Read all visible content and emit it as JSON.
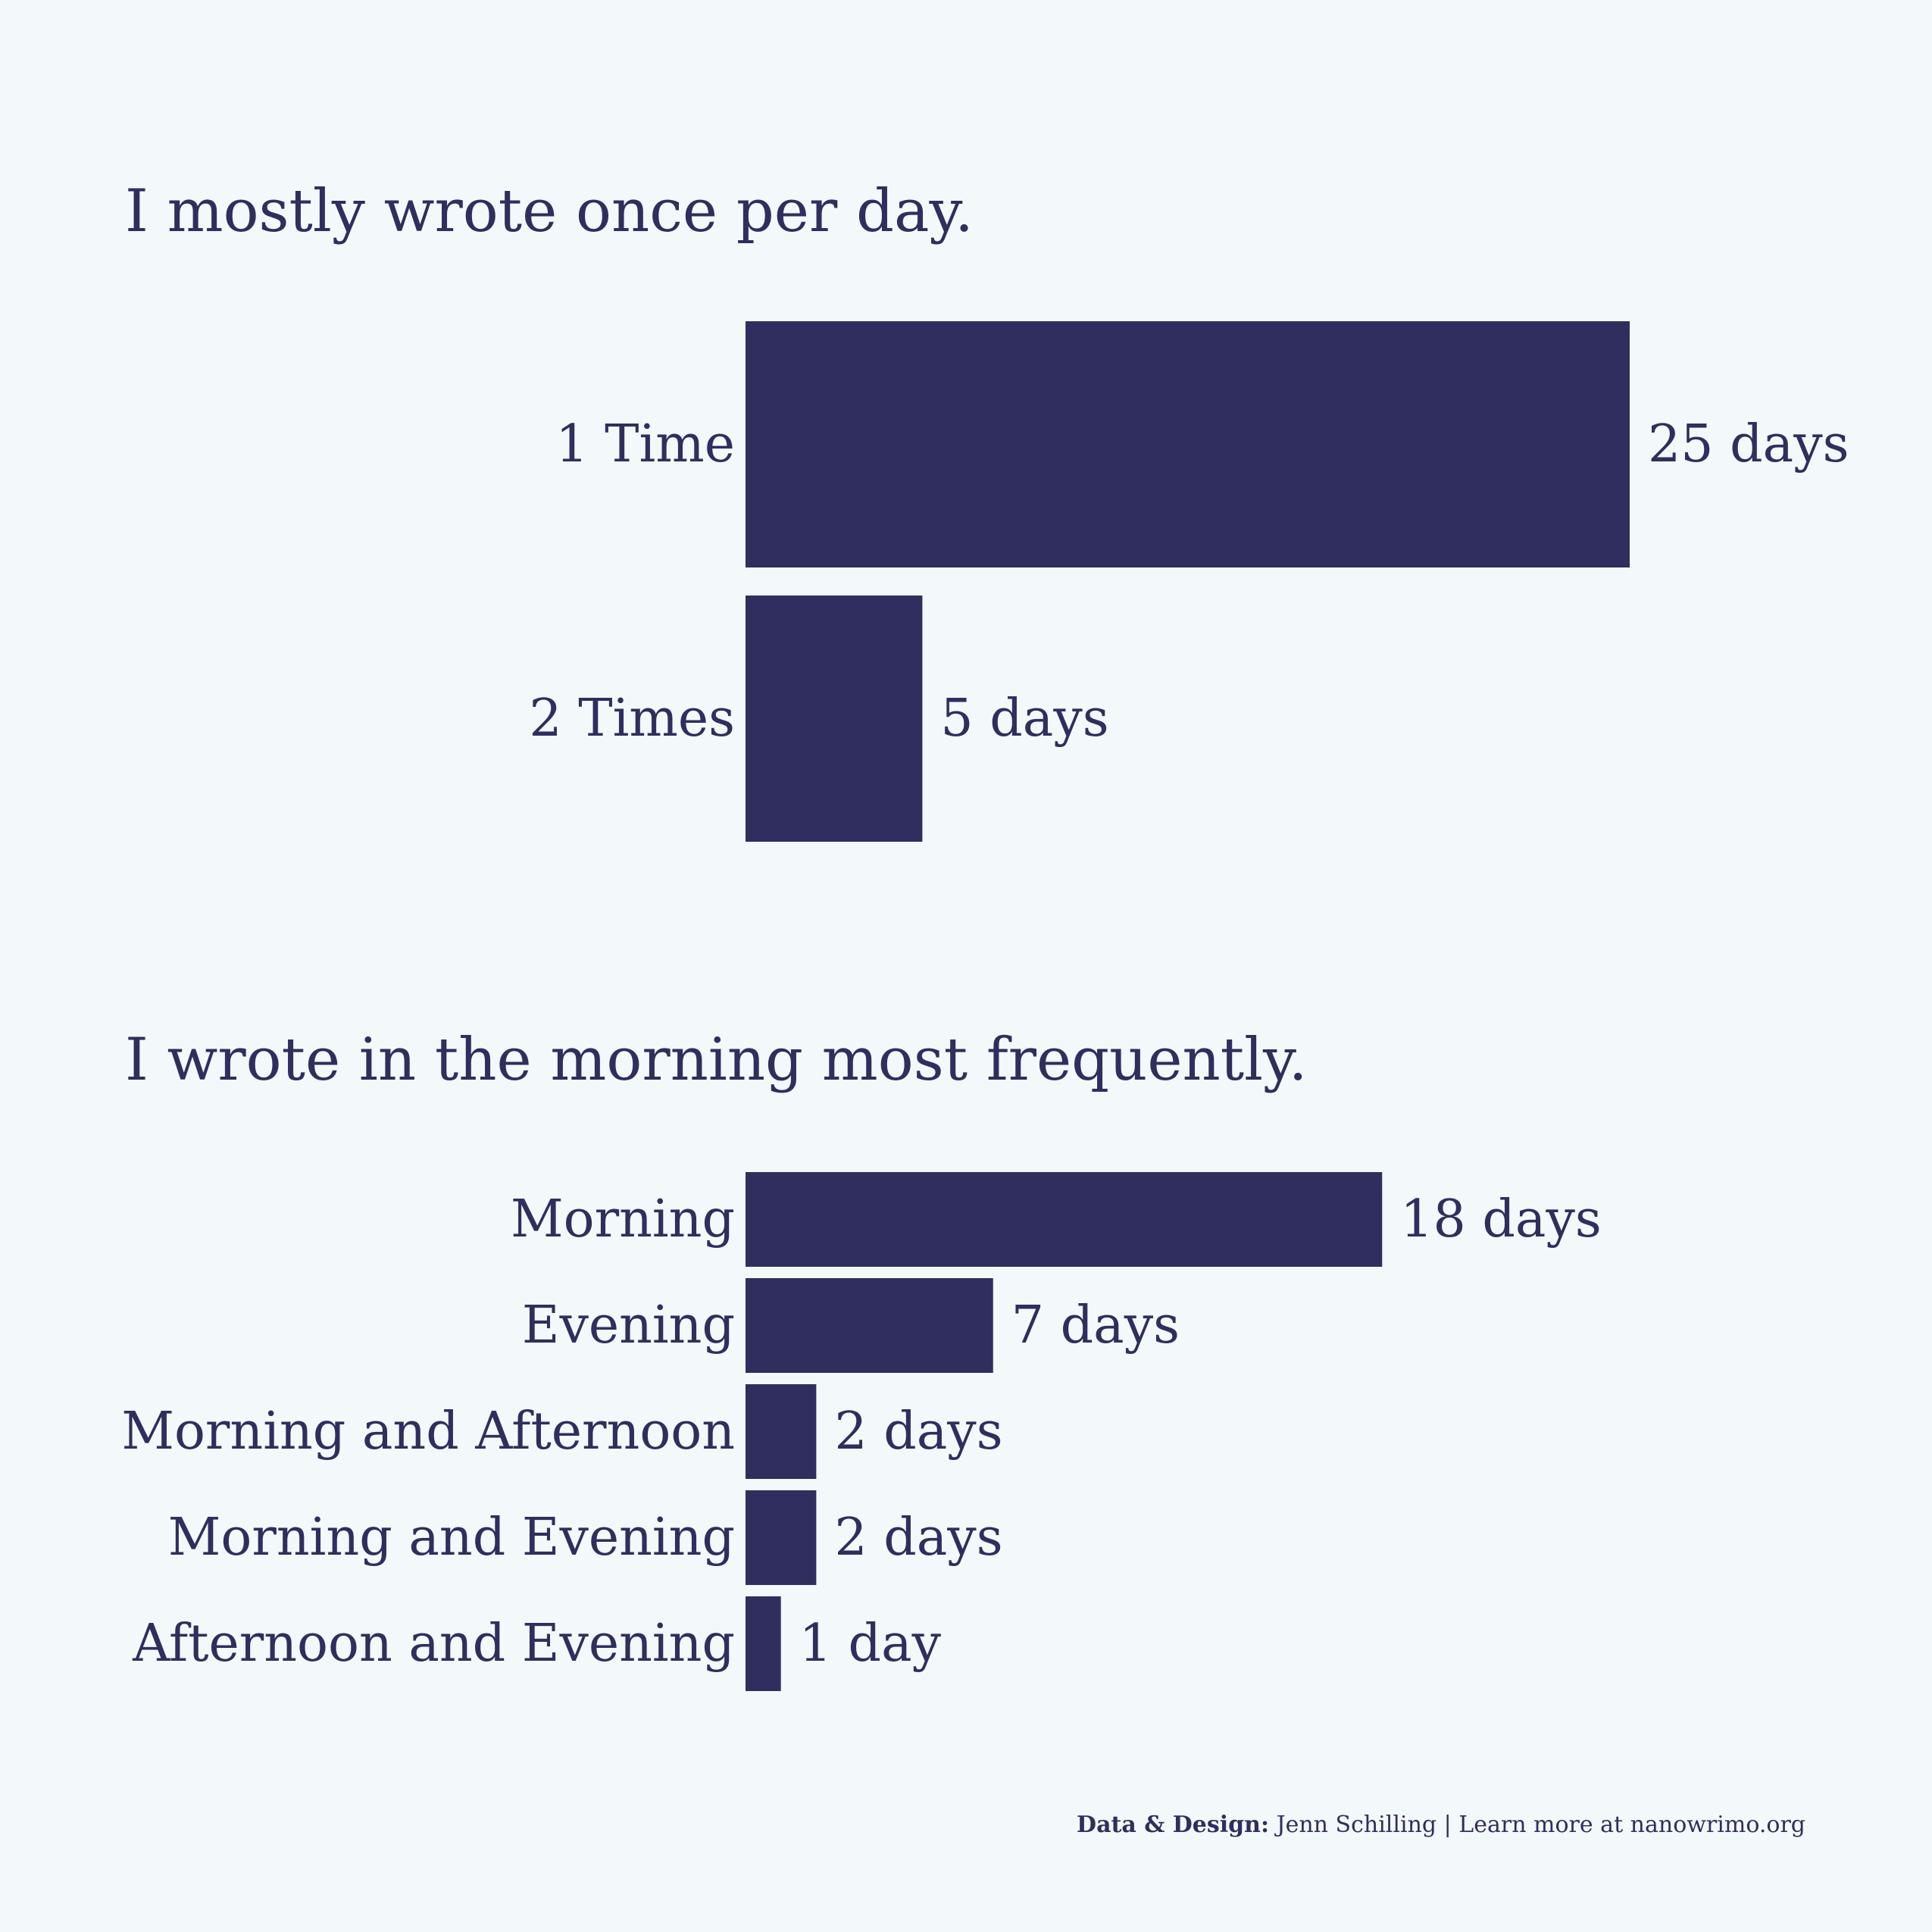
{
  "chart_data": [
    {
      "type": "bar",
      "orientation": "horizontal",
      "title": "I mostly wrote once per day.",
      "categories": [
        "1 Time",
        "2 Times"
      ],
      "values": [
        25,
        5
      ],
      "value_labels": [
        "25 days",
        "5 days"
      ],
      "xlim": [
        0,
        25
      ]
    },
    {
      "type": "bar",
      "orientation": "horizontal",
      "title": "I wrote in the morning most frequently.",
      "categories": [
        "Morning",
        "Evening",
        "Morning and Afternoon",
        "Morning and Evening",
        "Afternoon and Evening"
      ],
      "values": [
        18,
        7,
        2,
        2,
        1
      ],
      "value_labels": [
        "18 days",
        "7 days",
        "2 days",
        "2 days",
        "1 day"
      ],
      "xlim": [
        0,
        25
      ]
    }
  ],
  "caption": {
    "label": "Data & Design:",
    "text": " Jenn Schilling | Learn more at nanowrimo.org"
  },
  "colors": {
    "background": "#f3f8fa",
    "bar": "#2f2e5e",
    "text": "#2f2e5e"
  }
}
